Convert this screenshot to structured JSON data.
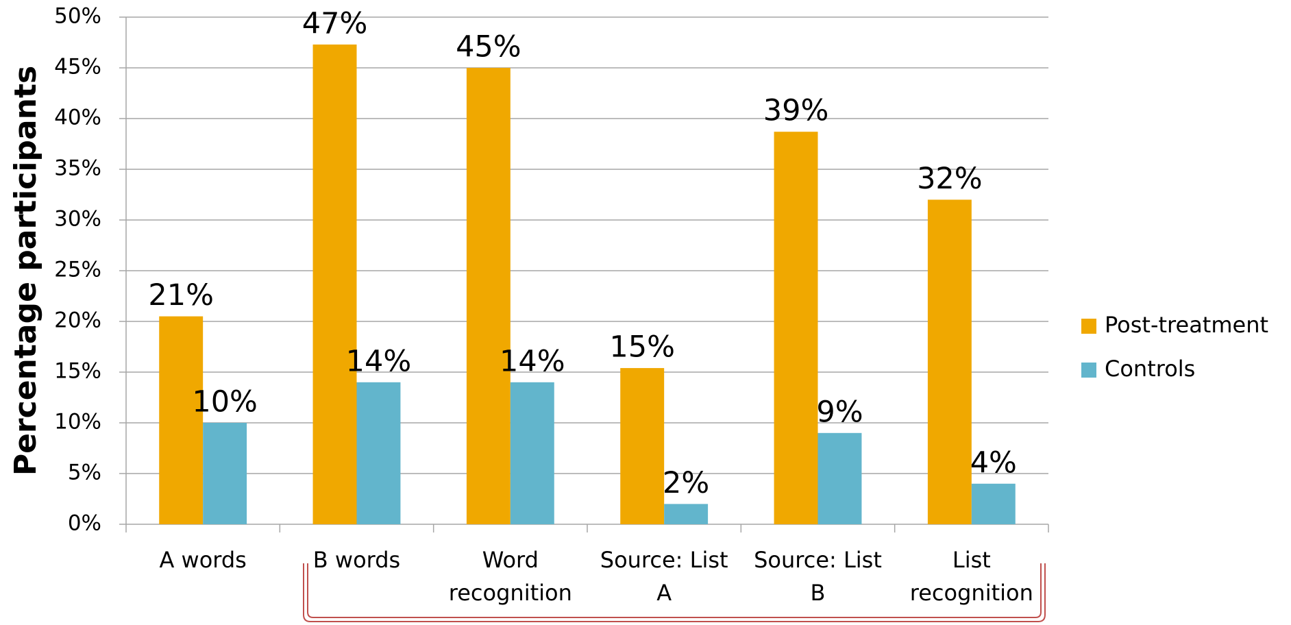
{
  "chart_data": {
    "type": "bar",
    "y_label": "Percentage participants",
    "categories": [
      "A words",
      "B words",
      "Word\nrecognition",
      "Source: List\nA",
      "Source: List\nB",
      "List\nrecognition"
    ],
    "series": [
      {
        "name": "Post-treatment",
        "color": "#f0a800",
        "values": [
          20.5,
          47.3,
          45,
          15.4,
          38.7,
          32
        ],
        "value_labels": [
          "21%",
          "47%",
          "45%",
          "15%",
          "39%",
          "32%"
        ]
      },
      {
        "name": "Controls",
        "color": "#62b5cc",
        "values": [
          10,
          14,
          14,
          2,
          9,
          4
        ],
        "value_labels": [
          "10%",
          "14%",
          "14%",
          "2%",
          "9%",
          "4%"
        ]
      }
    ],
    "ylim": [
      0,
      50
    ],
    "yticks": [
      {
        "value": 0,
        "label": "0%"
      },
      {
        "value": 5,
        "label": "5%"
      },
      {
        "value": 10,
        "label": "10%"
      },
      {
        "value": 15,
        "label": "15%"
      },
      {
        "value": 20,
        "label": "20%"
      },
      {
        "value": 25,
        "label": "25%"
      },
      {
        "value": 30,
        "label": "30%"
      },
      {
        "value": 35,
        "label": "35%"
      },
      {
        "value": 40,
        "label": "40%"
      },
      {
        "value": 45,
        "label": "45%"
      },
      {
        "value": 50,
        "label": "50%"
      }
    ],
    "grid": true,
    "legend": "right"
  }
}
